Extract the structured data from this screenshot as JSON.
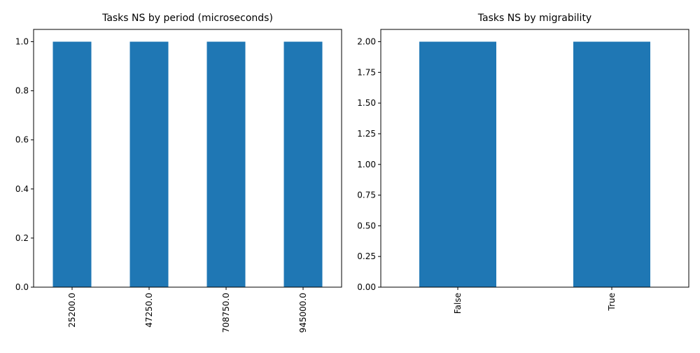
{
  "chart_data": [
    {
      "type": "bar",
      "title": "Tasks NS by period (microseconds)",
      "categories": [
        "25200.0",
        "47250.0",
        "708750.0",
        "945000.0"
      ],
      "values": [
        1,
        1,
        1,
        1
      ],
      "ylim": [
        0,
        1.05
      ],
      "yticks": [
        "0.0",
        "0.2",
        "0.4",
        "0.6",
        "0.8",
        "1.0"
      ],
      "bar_color": "#1f77b4",
      "grid": false,
      "legend": false
    },
    {
      "type": "bar",
      "title": "Tasks NS by migrability",
      "categories": [
        "False",
        "True"
      ],
      "values": [
        2,
        2
      ],
      "ylim": [
        0,
        2.1
      ],
      "yticks": [
        "0.00",
        "0.25",
        "0.50",
        "0.75",
        "1.00",
        "1.25",
        "1.50",
        "1.75",
        "2.00"
      ],
      "bar_color": "#1f77b4",
      "grid": false,
      "legend": false
    }
  ]
}
